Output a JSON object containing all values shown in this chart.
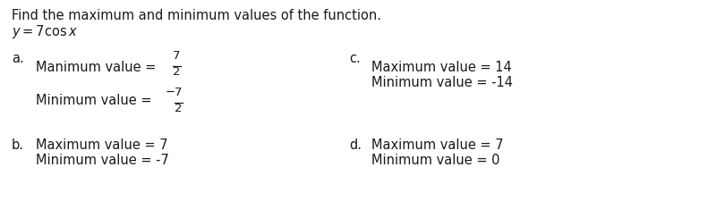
{
  "title_line1": "Find the maximum and minimum values of the function.",
  "title_line2": "y = 7cos x",
  "bg_color": "#ffffff",
  "text_color": "#1a1a1a",
  "font_size": 10.5,
  "small_fs": 9.5,
  "label_a": "a.",
  "label_b": "b.",
  "label_c": "c.",
  "label_d": "d.",
  "a_max_text": "Manimum value =",
  "a_min_text": "Minimum value =",
  "a_frac_num": "7",
  "a_frac_den": "2",
  "b_line1": "Maximum value = 7",
  "b_line2": "Minimum value = -7",
  "c_line1": "Maximum value = 14",
  "c_line2": "Minimum value = -14",
  "d_line1": "Maximum value = 7",
  "d_line2": "Minimum value = 0"
}
